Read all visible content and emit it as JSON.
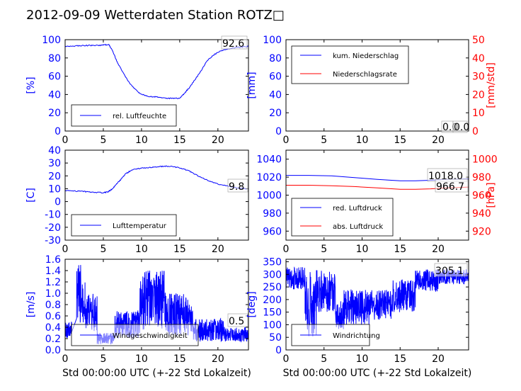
{
  "title": "2012-09-09 Wetterdaten Station ROTZ□",
  "colors": {
    "blue": "#0000ff",
    "red": "#ff0000",
    "black": "#000000"
  },
  "chart_data": [
    {
      "type": "line",
      "ylabel": "[%]",
      "xlim": [
        0,
        24
      ],
      "ylim": [
        0,
        100
      ],
      "xticks": [
        0,
        5,
        10,
        15,
        20
      ],
      "yticks": [
        0,
        20,
        40,
        60,
        80,
        100
      ],
      "legend": "lower-left",
      "series": [
        {
          "name": "rel. Luftfeuchte",
          "color": "#0000ff",
          "x": [
            0,
            1,
            2,
            3,
            4,
            5,
            5.7,
            6.2,
            6.8,
            7.5,
            8.2,
            9,
            9.8,
            10.6,
            11.5,
            12.4,
            13.3,
            14.2,
            15,
            15.7,
            16.3,
            17,
            17.8,
            18.6,
            19.4,
            20.2,
            21,
            22,
            23,
            24
          ],
          "y": [
            93,
            93,
            93.3,
            93.6,
            93.8,
            94,
            95,
            88,
            76,
            65,
            55,
            47,
            41,
            38.5,
            37.5,
            37,
            36,
            35.5,
            36,
            42,
            48,
            56,
            66,
            77,
            83,
            87,
            89,
            91,
            92,
            92.6
          ]
        }
      ],
      "annotations": [
        {
          "text": "92.6",
          "x": 20.5,
          "y": 95
        }
      ]
    },
    {
      "type": "line",
      "ylabel": "[mm]",
      "y2label": "[mm/std]",
      "xlim": [
        0,
        24
      ],
      "ylim": [
        0,
        100
      ],
      "y2lim": [
        0,
        50
      ],
      "xticks": [
        0,
        5,
        10,
        15,
        20
      ],
      "yticks": [
        0,
        20,
        40,
        60,
        80,
        100
      ],
      "y2ticks": [
        0,
        10,
        20,
        30,
        40,
        50
      ],
      "legend": "upper-left",
      "series": [
        {
          "name": "kum. Niederschlag",
          "color": "#0000ff",
          "x": [
            0,
            24
          ],
          "y": [
            0,
            0
          ]
        },
        {
          "name": "Niederschlagsrate",
          "color": "#ff0000",
          "x": [
            0,
            24
          ],
          "y": [
            0,
            0
          ]
        }
      ],
      "annotations": [
        {
          "text": "0.0",
          "x": 21,
          "y": 4
        },
        {
          "text": "0.0",
          "x": 22,
          "y": 4
        }
      ]
    },
    {
      "type": "line",
      "ylabel": "[C]",
      "xlim": [
        0,
        24
      ],
      "ylim": [
        -30,
        40
      ],
      "xticks": [
        0,
        5,
        10,
        15,
        20
      ],
      "yticks": [
        -30,
        -20,
        -10,
        0,
        10,
        20,
        30,
        40
      ],
      "legend": "lower-left",
      "series": [
        {
          "name": "Lufttemperatur",
          "color": "#0000ff",
          "x": [
            0,
            1,
            2,
            3,
            4,
            5,
            5.6,
            6.2,
            6.8,
            7.4,
            8,
            8.6,
            9.2,
            10,
            11,
            12,
            13,
            14,
            15,
            16,
            17,
            18,
            19,
            20,
            21,
            22,
            23,
            24
          ],
          "y": [
            8.8,
            8.3,
            8,
            7.6,
            7.2,
            6.8,
            7.6,
            10,
            14,
            18,
            22,
            24,
            25.2,
            26,
            26.6,
            27,
            27.6,
            27.4,
            26,
            24.5,
            21.2,
            18.4,
            15.8,
            13.6,
            12.4,
            11.2,
            10.4,
            9.8
          ]
        }
      ],
      "annotations": [
        {
          "text": "9.8",
          "x": 21.9,
          "y": 12
        }
      ]
    },
    {
      "type": "line",
      "ylabel": "",
      "y2label": "[hPa]",
      "xlim": [
        0,
        24
      ],
      "ylim": [
        950,
        1050
      ],
      "y2lim": [
        910,
        1010
      ],
      "xticks": [
        0,
        5,
        10,
        15,
        20
      ],
      "yticks": [
        960,
        980,
        1000,
        1020,
        1040
      ],
      "y2ticks": [
        920,
        940,
        960,
        980,
        1000
      ],
      "legend": "lower-left",
      "series": [
        {
          "name": "red. Luftdruck",
          "color": "#0000ff",
          "x": [
            0,
            3,
            6,
            9,
            12,
            15,
            17,
            19,
            21,
            24
          ],
          "y": [
            1022,
            1022,
            1021.5,
            1019.5,
            1017.5,
            1016,
            1016,
            1016.5,
            1017.5,
            1018
          ]
        },
        {
          "name": "abs. Luftdruck",
          "color": "#ff0000",
          "x": [
            0,
            3,
            6,
            9,
            12,
            15,
            17,
            19,
            21,
            24
          ],
          "y": [
            1011,
            1011,
            1010.5,
            1009.5,
            1008,
            1006.5,
            1006.5,
            1007,
            1008,
            1009
          ]
        }
      ],
      "annotations": [
        {
          "text": "1018.0",
          "x": 19.2,
          "y": 1023
        },
        {
          "text": "966.7",
          "x": 20.2,
          "y": 1011.5
        }
      ]
    },
    {
      "type": "line",
      "ylabel": "[m/s]",
      "xlabel": "Std 00:00:00 UTC (+-22 Std Lokalzeit)",
      "xlim": [
        0,
        24
      ],
      "ylim": [
        0,
        1.6
      ],
      "xticks": [
        0,
        5,
        10,
        15,
        20
      ],
      "yticks": [
        0.0,
        0.2,
        0.4,
        0.6,
        0.8,
        1.0,
        1.2,
        1.4,
        1.6
      ],
      "legend": "lower-left",
      "series": [
        {
          "name": "Windgeschwindigkeit",
          "color": "#0000ff",
          "segments": [
            [
              0,
              0.9,
              0.2,
              0.5
            ],
            [
              1.5,
              2.6,
              0.4,
              1.5
            ],
            [
              2.6,
              4.2,
              0.3,
              1.0
            ],
            [
              4.2,
              6.5,
              0.1,
              0.3
            ],
            [
              6.5,
              9.8,
              0.2,
              0.7
            ],
            [
              9.8,
              13.2,
              0.35,
              1.4
            ],
            [
              13.2,
              16.8,
              0.25,
              1.0
            ],
            [
              16.8,
              21,
              0.15,
              0.55
            ],
            [
              21,
              24,
              0.15,
              0.4
            ]
          ]
        }
      ],
      "annotations": [
        {
          "text": "0.5",
          "x": 21.9,
          "y": 0.49
        }
      ]
    },
    {
      "type": "line",
      "ylabel": "[deg]",
      "xlabel": "Std 00:00:00 UTC (+-22 Std Lokalzeit)",
      "xlim": [
        0,
        24
      ],
      "ylim": [
        0,
        360
      ],
      "xticks": [
        0,
        5,
        10,
        15,
        20
      ],
      "yticks": [
        0,
        50,
        100,
        150,
        200,
        250,
        300,
        350
      ],
      "legend": "lower-left",
      "series": [
        {
          "name": "Windrichtung",
          "color": "#0000ff",
          "segments": [
            [
              0,
              2.5,
              240,
              330
            ],
            [
              2.5,
              4,
              50,
              320
            ],
            [
              4,
              6.5,
              150,
              320
            ],
            [
              6.5,
              7.6,
              80,
              200
            ],
            [
              7.6,
              11,
              100,
              240
            ],
            [
              11,
              14,
              120,
              240
            ],
            [
              14,
              17,
              150,
              280
            ],
            [
              17,
              20,
              230,
              320
            ],
            [
              20,
              24,
              260,
              320
            ]
          ]
        }
      ],
      "annotations": [
        {
          "text": "305.1",
          "x": 19.8,
          "y": 318
        }
      ]
    }
  ]
}
